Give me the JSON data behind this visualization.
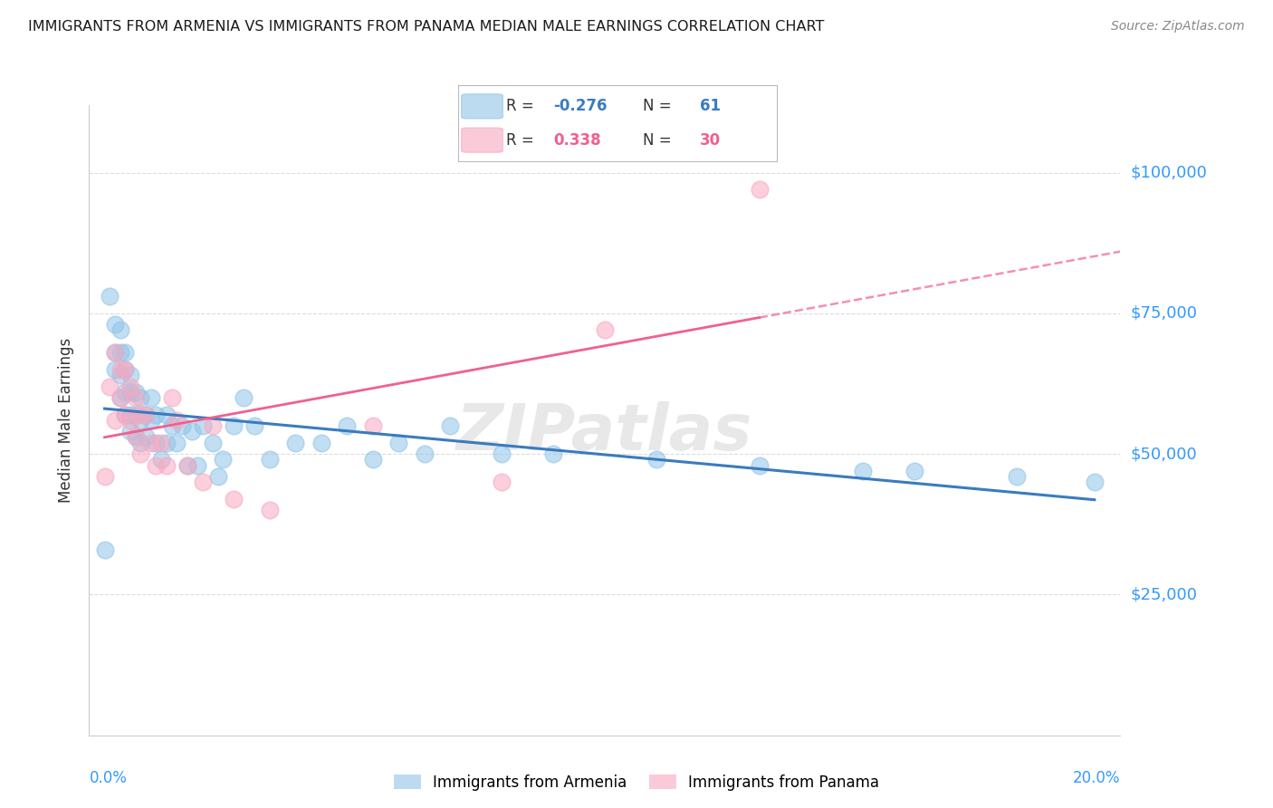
{
  "title": "IMMIGRANTS FROM ARMENIA VS IMMIGRANTS FROM PANAMA MEDIAN MALE EARNINGS CORRELATION CHART",
  "source": "Source: ZipAtlas.com",
  "ylabel": "Median Male Earnings",
  "ytick_labels": [
    "$25,000",
    "$50,000",
    "$75,000",
    "$100,000"
  ],
  "ytick_values": [
    25000,
    50000,
    75000,
    100000
  ],
  "ymin": 0,
  "ymax": 112000,
  "xmin": 0.0,
  "xmax": 0.2,
  "armenia_color": "#90c4e8",
  "panama_color": "#f9a8c0",
  "armenia_line_color": "#3a7bbf",
  "panama_line_color": "#f06090",
  "watermark": "ZIPatlas",
  "armenia_R": "-0.276",
  "armenia_N": "61",
  "panama_R": "0.338",
  "panama_N": "30",
  "legend_label_armenia": "Immigrants from Armenia",
  "legend_label_panama": "Immigrants from Panama",
  "background_color": "#ffffff",
  "grid_color": "#cccccc",
  "title_color": "#1a1a1a",
  "axis_label_color": "#3399ff",
  "ytick_color": "#3399ff",
  "title_fontsize": 11.5,
  "source_fontsize": 10,
  "armenia_x": [
    0.003,
    0.004,
    0.005,
    0.005,
    0.005,
    0.006,
    0.006,
    0.006,
    0.006,
    0.007,
    0.007,
    0.007,
    0.007,
    0.008,
    0.008,
    0.008,
    0.008,
    0.009,
    0.009,
    0.009,
    0.01,
    0.01,
    0.01,
    0.011,
    0.011,
    0.012,
    0.012,
    0.013,
    0.013,
    0.014,
    0.015,
    0.015,
    0.016,
    0.017,
    0.018,
    0.019,
    0.02,
    0.021,
    0.022,
    0.024,
    0.025,
    0.026,
    0.028,
    0.03,
    0.032,
    0.035,
    0.04,
    0.045,
    0.05,
    0.055,
    0.06,
    0.065,
    0.07,
    0.08,
    0.09,
    0.11,
    0.13,
    0.15,
    0.16,
    0.18,
    0.195
  ],
  "armenia_y": [
    33000,
    78000,
    68000,
    73000,
    65000,
    72000,
    68000,
    64000,
    60000,
    68000,
    65000,
    61000,
    57000,
    64000,
    61000,
    57000,
    54000,
    61000,
    57000,
    53000,
    60000,
    56000,
    52000,
    57000,
    53000,
    60000,
    56000,
    57000,
    52000,
    49000,
    57000,
    52000,
    55000,
    52000,
    55000,
    48000,
    54000,
    48000,
    55000,
    52000,
    46000,
    49000,
    55000,
    60000,
    55000,
    49000,
    52000,
    52000,
    55000,
    49000,
    52000,
    50000,
    55000,
    50000,
    50000,
    49000,
    48000,
    47000,
    47000,
    46000,
    45000
  ],
  "panama_x": [
    0.003,
    0.004,
    0.005,
    0.005,
    0.006,
    0.006,
    0.007,
    0.007,
    0.008,
    0.008,
    0.009,
    0.009,
    0.01,
    0.01,
    0.011,
    0.012,
    0.013,
    0.014,
    0.015,
    0.016,
    0.017,
    0.019,
    0.022,
    0.024,
    0.028,
    0.035,
    0.055,
    0.08,
    0.1,
    0.13
  ],
  "panama_y": [
    46000,
    62000,
    68000,
    56000,
    65000,
    60000,
    65000,
    57000,
    62000,
    56000,
    60000,
    53000,
    57000,
    50000,
    57000,
    52000,
    48000,
    52000,
    48000,
    60000,
    56000,
    48000,
    45000,
    55000,
    42000,
    40000,
    55000,
    45000,
    72000,
    97000
  ],
  "panama_line_start_x": 0.003,
  "panama_line_end_x": 0.2,
  "armenia_line_start_x": 0.003,
  "armenia_line_end_x": 0.195
}
